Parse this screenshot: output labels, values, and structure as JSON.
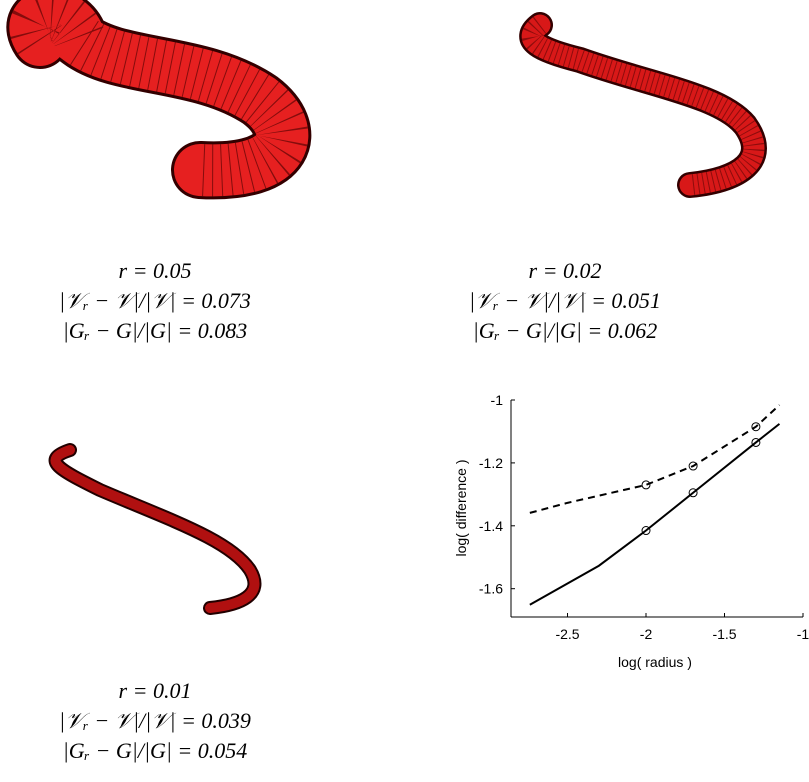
{
  "panels": [
    {
      "lines": [
        "r = 0.05",
        "|𝒱ᵣ − 𝒱|/|𝒱| = 0.073",
        "|Gᵣ − G|/|G| = 0.083"
      ]
    },
    {
      "lines": [
        "r = 0.02",
        "|𝒱ᵣ − 𝒱|/|𝒱| = 0.051",
        "|Gᵣ − G|/|G| = 0.062"
      ]
    },
    {
      "lines": [
        "r = 0.01",
        "|𝒱ᵣ − 𝒱|/|𝒱| = 0.039",
        "|Gᵣ − G|/|G| = 0.054"
      ]
    }
  ],
  "chart_data": {
    "type": "line",
    "x_label": "log( radius )",
    "y_label": "log( difference )",
    "xlim": [
      -2.86,
      -1
    ],
    "ylim": [
      -1.69,
      -1
    ],
    "xticks": [
      -2.5,
      -2,
      -1.5,
      -1
    ],
    "yticks": [
      -1.6,
      -1.4,
      -1.2,
      -1
    ],
    "series": [
      {
        "color": "#000000",
        "dash": true,
        "x": [
          -2.74,
          -2.5,
          -2,
          -1.7,
          -1.3,
          -1.15
        ],
        "values": [
          -1.359,
          -1.327,
          -1.27,
          -1.21,
          -1.085,
          -1.016
        ]
      },
      {
        "color": "#000000",
        "dash": false,
        "x": [
          -2.74,
          -2.3,
          -2,
          -1.7,
          -1.3,
          -1.15
        ],
        "values": [
          -1.651,
          -1.527,
          -1.415,
          -1.295,
          -1.135,
          -1.076
        ]
      },
      {
        "color": "#000000",
        "marker": "o",
        "x": [
          -2,
          -1.7,
          -1.3
        ],
        "values": [
          -1.27,
          -1.21,
          -1.085
        ]
      },
      {
        "color": "#000000",
        "marker": "o",
        "x": [
          -2,
          -1.7,
          -1.3
        ],
        "values": [
          -1.415,
          -1.295,
          -1.135
        ]
      }
    ]
  }
}
